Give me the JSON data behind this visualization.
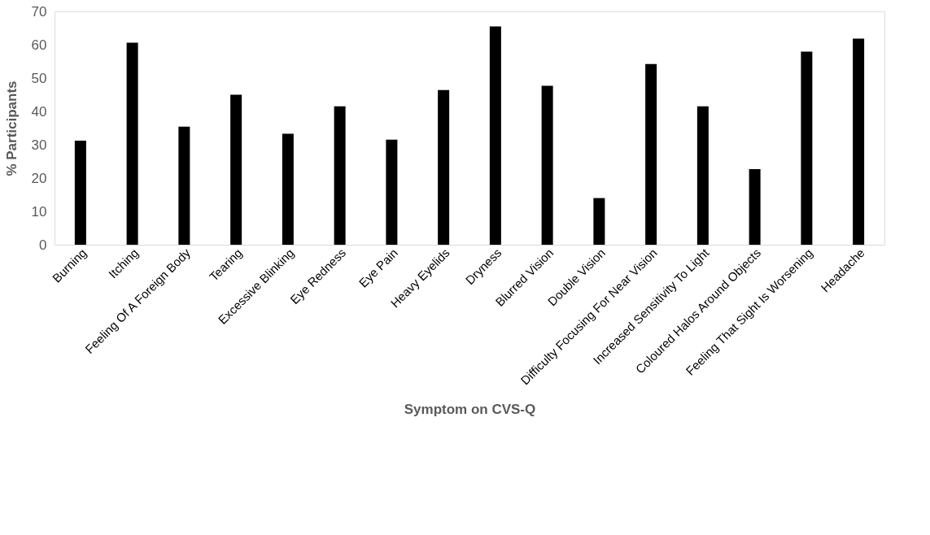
{
  "chart_data": {
    "type": "bar",
    "xlabel": "Symptom on CVS-Q",
    "ylabel": "% Participants",
    "categories": [
      "Burning",
      "Itching",
      "Feeling Of A Foreign Body",
      "Tearing",
      "Excessive Blinking",
      "Eye Redness",
      "Eye Pain",
      "Heavy Eyelids",
      "Dryness",
      "Blurred Vision",
      "Double Vision",
      "Difficulty Focusing For Near Vision",
      "Increased Sensitivity To Light",
      "Coloured Halos Around Objects",
      "Feeling That Sight Is Worsening",
      "Headache"
    ],
    "values": [
      31.2,
      60.6,
      35.4,
      45,
      33.3,
      41.5,
      31.5,
      46.4,
      65.5,
      47.7,
      14,
      54.2,
      41.5,
      22.7,
      57.9,
      61.8
    ],
    "color": "#000000",
    "ylim": [
      0,
      70
    ],
    "yticks": [
      0,
      10,
      20,
      30,
      40,
      50,
      60,
      70
    ],
    "grid": false
  }
}
